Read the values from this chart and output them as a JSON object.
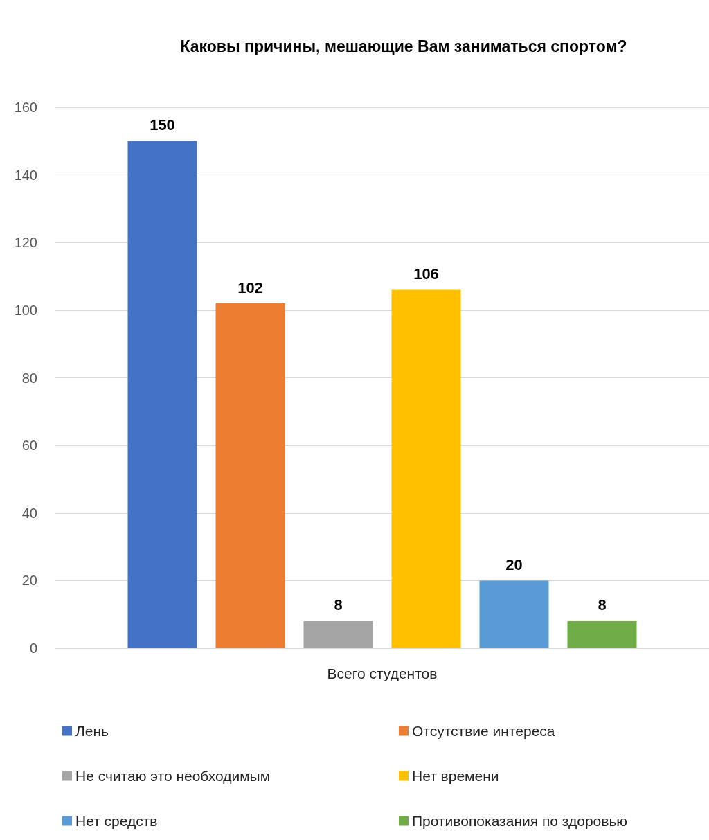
{
  "chart_data": {
    "type": "bar",
    "title": "Каковы причины, мешающие Вам заниматься спортом?",
    "categories": [
      "Всего студентов"
    ],
    "series": [
      {
        "name": "Лень",
        "color": "#4472c4",
        "values": [
          150
        ]
      },
      {
        "name": "Отсутствие интереса",
        "color": "#ed7d31",
        "values": [
          102
        ]
      },
      {
        "name": "Не считаю это необходимым",
        "color": "#a5a5a5",
        "values": [
          8
        ]
      },
      {
        "name": "Нет времени",
        "color": "#ffc000",
        "values": [
          106
        ]
      },
      {
        "name": "Нет средств",
        "color": "#5b9bd5",
        "values": [
          20
        ]
      },
      {
        "name": "Противопоказания по здоровью",
        "color": "#70ad47",
        "values": [
          8
        ]
      }
    ],
    "ylim": [
      0,
      160
    ],
    "yticks": [
      0,
      20,
      40,
      60,
      80,
      100,
      120,
      140,
      160
    ],
    "grid": "y",
    "legend": "bottom",
    "data_labels": true
  }
}
